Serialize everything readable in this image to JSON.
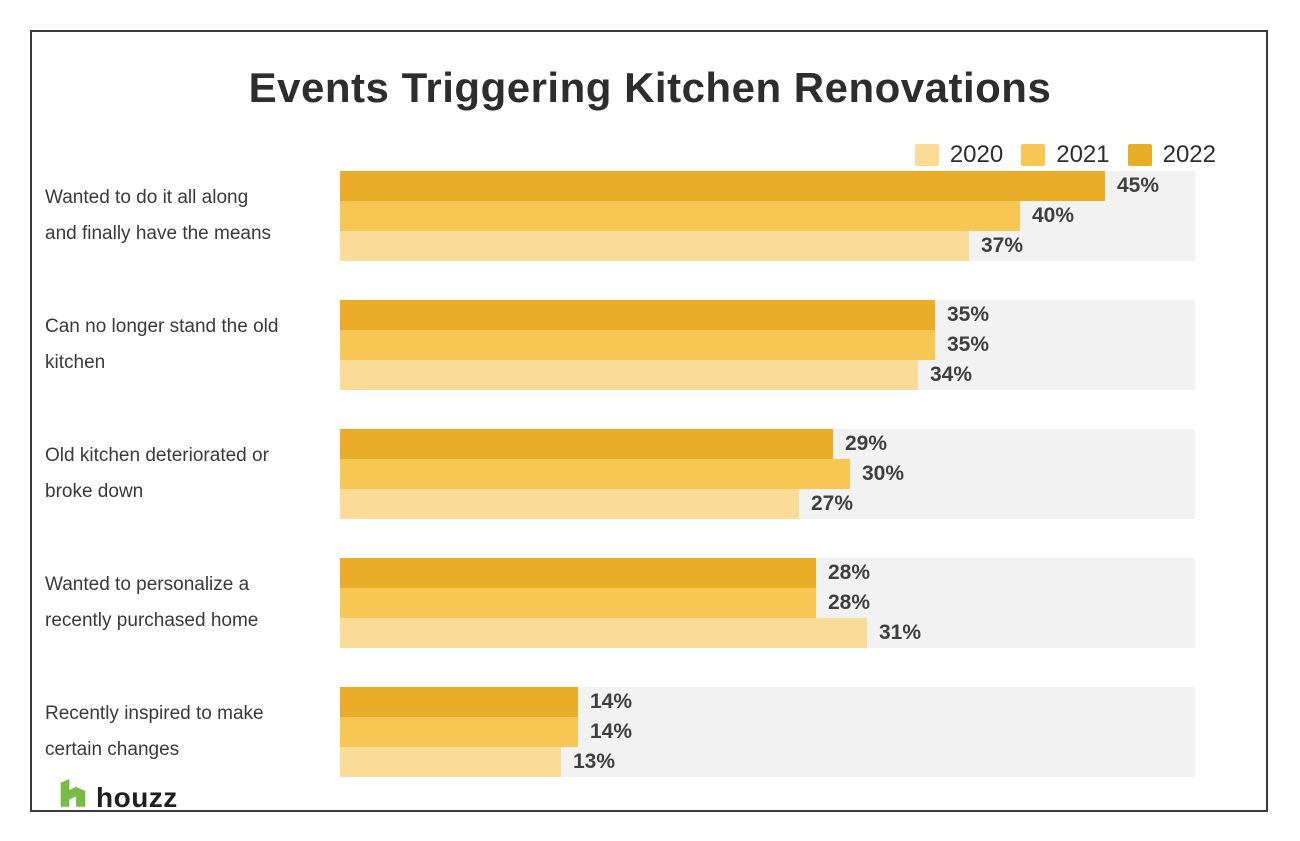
{
  "title": "Events Triggering Kitchen Renovations",
  "legend": [
    {
      "label": "2020",
      "color": "#fbdc96"
    },
    {
      "label": "2021",
      "color": "#f8c654"
    },
    {
      "label": "2022",
      "color": "#e9ad28"
    }
  ],
  "chart_data": {
    "type": "bar",
    "orientation": "horizontal",
    "title": "Events Triggering Kitchen Renovations",
    "categories": [
      {
        "lines": [
          "Wanted to do it all along",
          "and finally have the means"
        ]
      },
      {
        "lines": [
          "Can no longer stand the old",
          "kitchen"
        ]
      },
      {
        "lines": [
          "Old kitchen deteriorated or",
          "broke down"
        ]
      },
      {
        "lines": [
          "Wanted to personalize a",
          "recently purchased home"
        ]
      },
      {
        "lines": [
          "Recently inspired to make",
          "certain changes"
        ]
      }
    ],
    "series": [
      {
        "name": "2022",
        "color": "#e9ad28",
        "values": [
          45,
          35,
          29,
          28,
          14
        ]
      },
      {
        "name": "2021",
        "color": "#f8c654",
        "values": [
          40,
          35,
          30,
          28,
          14
        ]
      },
      {
        "name": "2020",
        "color": "#fbdc96",
        "values": [
          37,
          34,
          27,
          31,
          13
        ]
      }
    ],
    "value_suffix": "%",
    "xlim": [
      0,
      50
    ],
    "grid": false,
    "legend_position": "top-right",
    "track_color": "#f2f2f3"
  },
  "branding": {
    "name": "houzz",
    "icon": "houzz-h-icon",
    "icon_color": "#74bc43"
  }
}
